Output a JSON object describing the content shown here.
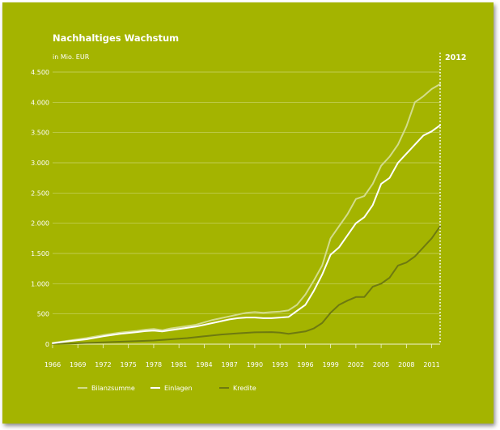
{
  "chart_data": {
    "type": "line",
    "title": "Nachhaltiges Wachstum",
    "subtitle": "in Mio. EUR",
    "xlabel": "",
    "ylabel": "",
    "xlim": [
      1966,
      2012
    ],
    "ylim": [
      0,
      4500
    ],
    "x_tick_labels": [
      "1966",
      "1969",
      "1972",
      "1975",
      "1978",
      "1981",
      "1984",
      "1987",
      "1990",
      "1993",
      "1996",
      "1999",
      "2002",
      "2005",
      "2008",
      "2011"
    ],
    "y_tick_labels": [
      "0",
      "500",
      "1.000",
      "1.500",
      "2.000",
      "2.500",
      "3.000",
      "3.500",
      "4.000",
      "4.500"
    ],
    "y_ticks": [
      0,
      500,
      1000,
      1500,
      2000,
      2500,
      3000,
      3500,
      4000,
      4500
    ],
    "grid": true,
    "marker_label": "2012",
    "legend_position": "bottom-left",
    "series": [
      {
        "name": "Bilanzsumme",
        "color": "#d3dc8c",
        "x": [
          1966,
          1968,
          1970,
          1972,
          1974,
          1976,
          1977,
          1978,
          1979,
          1980,
          1981,
          1982,
          1983,
          1984,
          1985,
          1986,
          1987,
          1988,
          1989,
          1990,
          1991,
          1992,
          1993,
          1994,
          1995,
          1996,
          1997,
          1998,
          1999,
          2000,
          2001,
          2002,
          2003,
          2004,
          2005,
          2006,
          2007,
          2008,
          2009,
          2010,
          2011,
          2012
        ],
        "values": [
          20,
          60,
          100,
          150,
          190,
          220,
          240,
          250,
          230,
          260,
          280,
          300,
          320,
          360,
          400,
          430,
          460,
          490,
          520,
          530,
          520,
          530,
          540,
          560,
          650,
          820,
          1050,
          1300,
          1750,
          1950,
          2150,
          2400,
          2450,
          2650,
          2950,
          3100,
          3300,
          3600,
          4000,
          4100,
          4220,
          4300
        ]
      },
      {
        "name": "Einlagen",
        "color": "#ffffff",
        "x": [
          1966,
          1968,
          1970,
          1972,
          1974,
          1976,
          1977,
          1978,
          1979,
          1980,
          1981,
          1982,
          1983,
          1984,
          1985,
          1986,
          1987,
          1988,
          1989,
          1990,
          1991,
          1992,
          1993,
          1994,
          1995,
          1996,
          1997,
          1998,
          1999,
          2000,
          2001,
          2002,
          2003,
          2004,
          2005,
          2006,
          2007,
          2008,
          2009,
          2010,
          2011,
          2012
        ],
        "values": [
          15,
          50,
          80,
          130,
          170,
          200,
          215,
          225,
          210,
          230,
          250,
          270,
          290,
          320,
          350,
          380,
          410,
          430,
          440,
          440,
          430,
          430,
          440,
          450,
          550,
          650,
          880,
          1150,
          1480,
          1600,
          1800,
          2000,
          2100,
          2300,
          2650,
          2750,
          3000,
          3150,
          3300,
          3450,
          3520,
          3620
        ]
      },
      {
        "name": "Kredite",
        "color": "#6e7a10",
        "x": [
          1966,
          1968,
          1970,
          1972,
          1974,
          1976,
          1978,
          1980,
          1982,
          1984,
          1986,
          1988,
          1990,
          1992,
          1993,
          1994,
          1995,
          1996,
          1997,
          1998,
          1999,
          2000,
          2001,
          2002,
          2003,
          2004,
          2005,
          2006,
          2007,
          2008,
          2009,
          2010,
          2011,
          2012
        ],
        "values": [
          5,
          10,
          20,
          30,
          40,
          50,
          60,
          80,
          100,
          130,
          160,
          180,
          195,
          200,
          190,
          170,
          190,
          210,
          260,
          350,
          520,
          650,
          720,
          780,
          780,
          950,
          1000,
          1100,
          1300,
          1350,
          1450,
          1600,
          1750,
          1950
        ]
      }
    ]
  }
}
